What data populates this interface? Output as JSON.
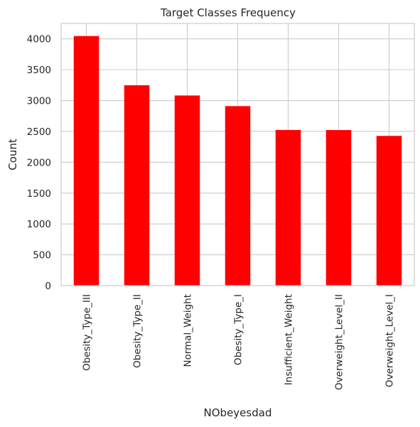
{
  "chart_data": {
    "type": "bar",
    "title": "Target Classes Frequency",
    "xlabel": "NObeyesdad",
    "ylabel": "Count",
    "categories": [
      "Obesity_Type_III",
      "Obesity_Type_II",
      "Normal_Weight",
      "Obesity_Type_I",
      "Insufficient_Weight",
      "Overweight_Level_II",
      "Overweight_Level_I"
    ],
    "values": [
      4046,
      3248,
      3082,
      2910,
      2523,
      2522,
      2427
    ],
    "ylim": [
      0,
      4250
    ],
    "yticks": [
      0,
      500,
      1000,
      1500,
      2000,
      2500,
      3000,
      3500,
      4000
    ],
    "grid": true,
    "bar_color": "#ff0000"
  }
}
